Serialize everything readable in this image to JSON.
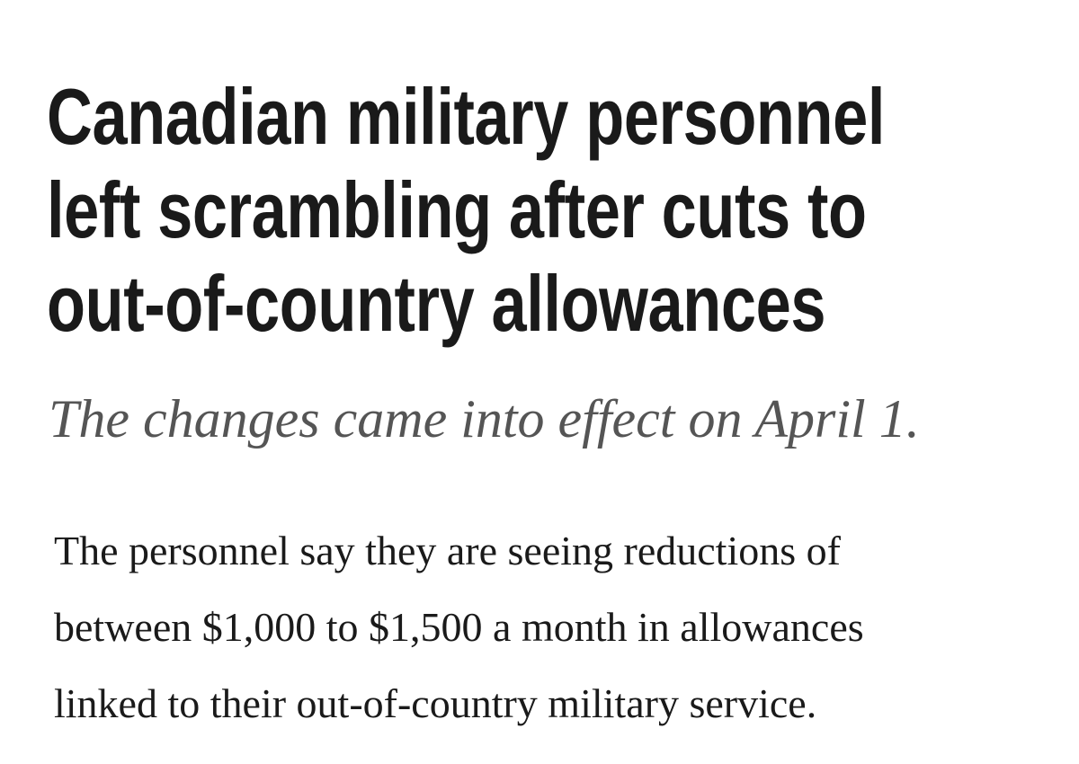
{
  "headline": {
    "lines": [
      "Canadian military personnel",
      "left scrambling after cuts to",
      "out-of-country allowances"
    ]
  },
  "subtitle": "The changes came into effect on April 1.",
  "body": {
    "lines": [
      "The personnel say they are seeing reductions of",
      "between $1,000 to $1,500 a month in allowances",
      "linked to their out-of-country military service."
    ]
  }
}
